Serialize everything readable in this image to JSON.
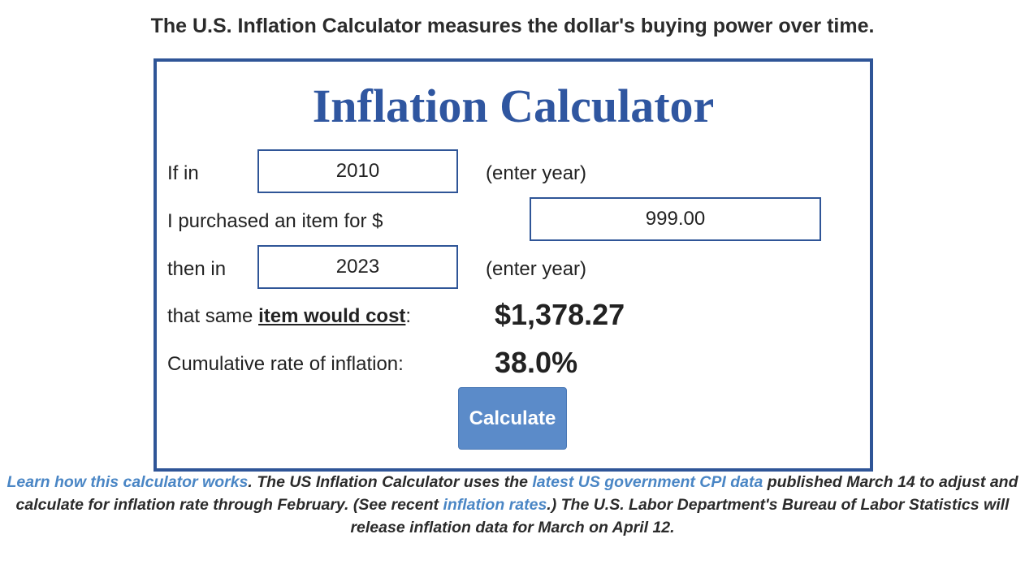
{
  "header": {
    "tagline": "The U.S. Inflation Calculator measures the dollar's buying power over time."
  },
  "calculator": {
    "title": "Inflation Calculator",
    "row_start_year": {
      "label": "If in",
      "value": "2010",
      "hint": "(enter year)"
    },
    "row_amount": {
      "label": "I purchased an item for $",
      "value": "999.00"
    },
    "row_end_year": {
      "label": "then in",
      "value": "2023",
      "hint": "(enter year)"
    },
    "row_cost": {
      "label_prefix": "that same ",
      "label_emphasis": "item would cost",
      "label_suffix": ":",
      "result": "$1,378.27"
    },
    "row_rate": {
      "label": "Cumulative rate of inflation:",
      "result": "38.0%"
    },
    "button_label": "Calculate"
  },
  "footer_note": {
    "link_how": "Learn how this calculator works",
    "text_1": ". The US Inflation Calculator uses the ",
    "link_cpi": "latest US government CPI data",
    "text_2": " published March 14 to adjust and calculate for inflation rate through February. (See recent ",
    "link_rates": "inflation rates",
    "text_3": ".) The U.S. Labor Department's Bureau of Labor Statistics will release inflation data for March on April 12."
  },
  "colors": {
    "border": "#2f5597",
    "title": "#2f56a0",
    "button": "#5b8bc9",
    "link": "#4a86c5"
  }
}
